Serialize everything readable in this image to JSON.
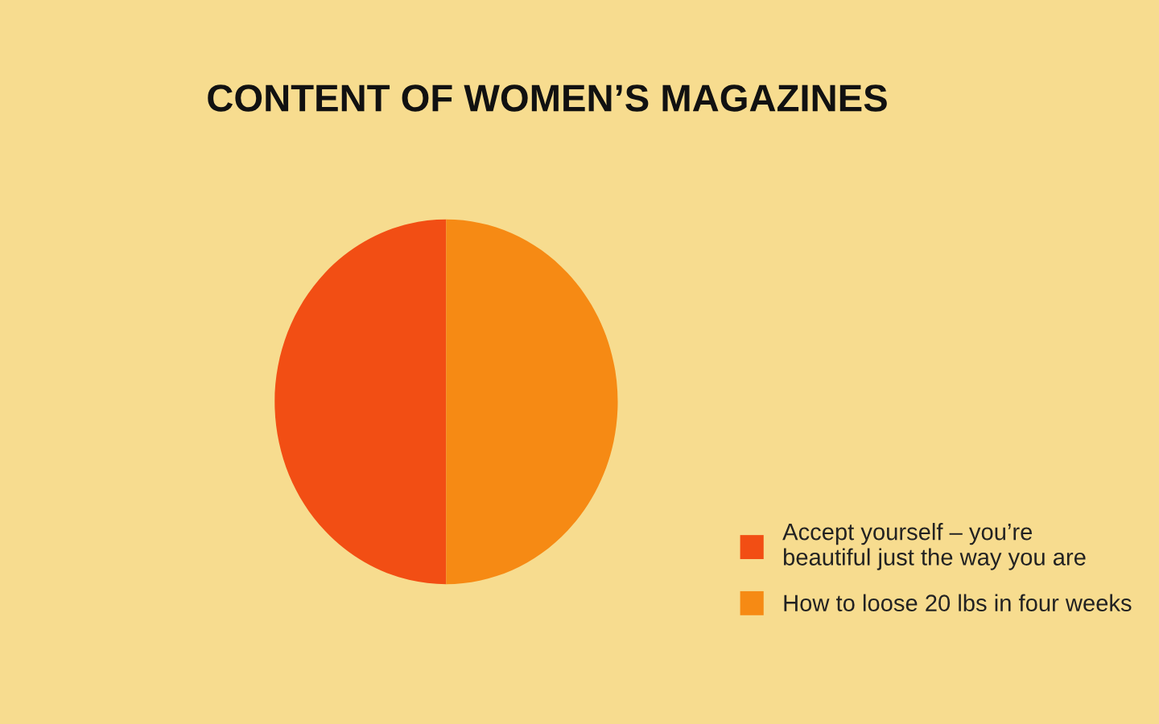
{
  "chart_data": {
    "type": "pie",
    "title": "CONTENT OF WOMEN’S MAGAZINES",
    "categories": [
      "Accept yourself – you’re\nbeautiful just the way you are",
      "How to loose 20 lbs in four weeks"
    ],
    "values": [
      50,
      50
    ],
    "colors": [
      "#f24e14",
      "#f68a14"
    ],
    "legend": "bottom right"
  }
}
